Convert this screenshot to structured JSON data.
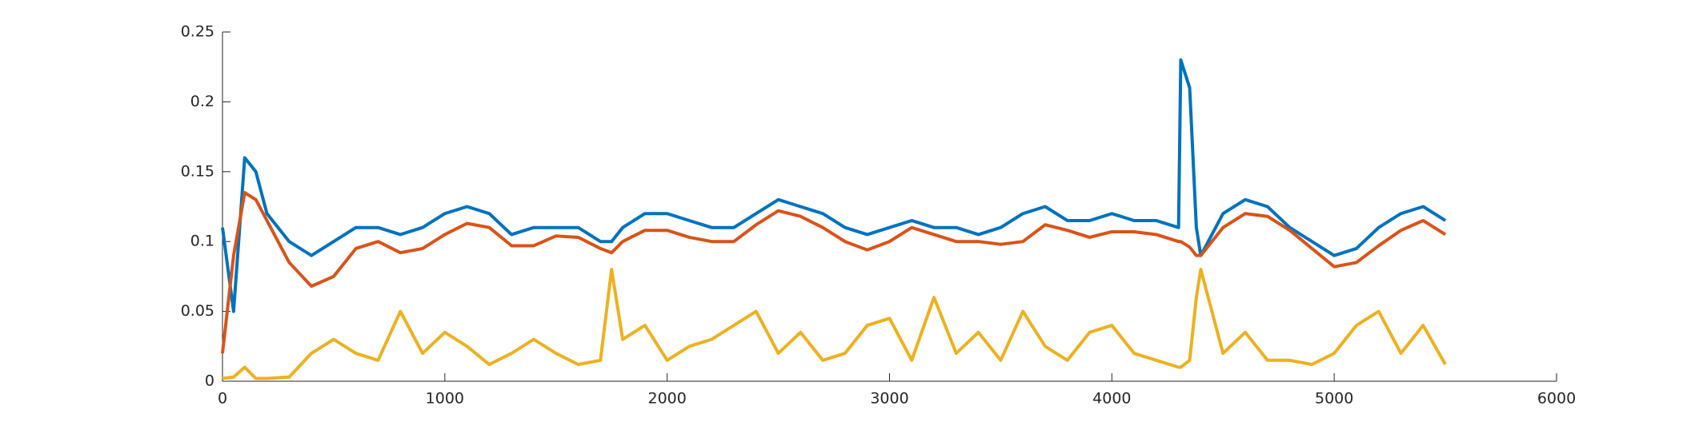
{
  "chart_data": {
    "type": "line",
    "x": [
      0,
      50,
      100,
      150,
      200,
      300,
      400,
      500,
      600,
      700,
      800,
      900,
      1000,
      1100,
      1200,
      1300,
      1400,
      1500,
      1600,
      1700,
      1750,
      1800,
      1900,
      2000,
      2100,
      2200,
      2300,
      2400,
      2500,
      2600,
      2700,
      2800,
      2900,
      3000,
      3100,
      3200,
      3300,
      3400,
      3500,
      3600,
      3700,
      3800,
      3900,
      4000,
      4100,
      4200,
      4300,
      4310,
      4350,
      4380,
      4400,
      4500,
      4600,
      4700,
      4800,
      4900,
      5000,
      5100,
      5200,
      5300,
      5400,
      5500
    ],
    "series": [
      {
        "color": "#0072BD",
        "values": [
          0.11,
          0.05,
          0.16,
          0.15,
          0.12,
          0.1,
          0.09,
          0.1,
          0.11,
          0.11,
          0.105,
          0.11,
          0.12,
          0.125,
          0.12,
          0.105,
          0.11,
          0.11,
          0.11,
          0.1,
          0.1,
          0.11,
          0.12,
          0.12,
          0.115,
          0.11,
          0.11,
          0.12,
          0.13,
          0.125,
          0.12,
          0.11,
          0.105,
          0.11,
          0.115,
          0.11,
          0.11,
          0.105,
          0.11,
          0.12,
          0.125,
          0.115,
          0.115,
          0.12,
          0.115,
          0.115,
          0.11,
          0.23,
          0.21,
          0.11,
          0.09,
          0.12,
          0.13,
          0.125,
          0.11,
          0.1,
          0.09,
          0.095,
          0.11,
          0.12,
          0.125,
          0.115
        ]
      },
      {
        "color": "#D95319",
        "values": [
          0.02,
          0.09,
          0.135,
          0.13,
          0.115,
          0.085,
          0.068,
          0.075,
          0.095,
          0.1,
          0.092,
          0.095,
          0.105,
          0.113,
          0.11,
          0.097,
          0.097,
          0.104,
          0.103,
          0.095,
          0.092,
          0.1,
          0.108,
          0.108,
          0.103,
          0.1,
          0.1,
          0.112,
          0.122,
          0.118,
          0.11,
          0.1,
          0.094,
          0.1,
          0.11,
          0.105,
          0.1,
          0.1,
          0.098,
          0.1,
          0.112,
          0.108,
          0.103,
          0.107,
          0.107,
          0.105,
          0.1,
          0.1,
          0.096,
          0.09,
          0.09,
          0.11,
          0.12,
          0.118,
          0.108,
          0.095,
          0.082,
          0.085,
          0.097,
          0.108,
          0.115,
          0.105
        ]
      },
      {
        "color": "#EDB120",
        "values": [
          0.002,
          0.003,
          0.01,
          0.002,
          0.002,
          0.003,
          0.02,
          0.03,
          0.02,
          0.015,
          0.05,
          0.02,
          0.035,
          0.025,
          0.012,
          0.02,
          0.03,
          0.02,
          0.012,
          0.015,
          0.08,
          0.03,
          0.04,
          0.015,
          0.025,
          0.03,
          0.04,
          0.05,
          0.02,
          0.035,
          0.015,
          0.02,
          0.04,
          0.045,
          0.015,
          0.06,
          0.02,
          0.035,
          0.015,
          0.05,
          0.025,
          0.015,
          0.035,
          0.04,
          0.02,
          0.015,
          0.01,
          0.01,
          0.015,
          0.06,
          0.08,
          0.02,
          0.035,
          0.015,
          0.015,
          0.012,
          0.02,
          0.04,
          0.05,
          0.02,
          0.04,
          0.012
        ]
      }
    ],
    "xlim": [
      0,
      6000
    ],
    "xticks": [
      0,
      1000,
      2000,
      3000,
      4000,
      5000,
      6000
    ],
    "ylim": [
      0,
      0.25
    ],
    "yticks": [
      0,
      0.05,
      0.1,
      0.15,
      0.2,
      0.25
    ]
  }
}
